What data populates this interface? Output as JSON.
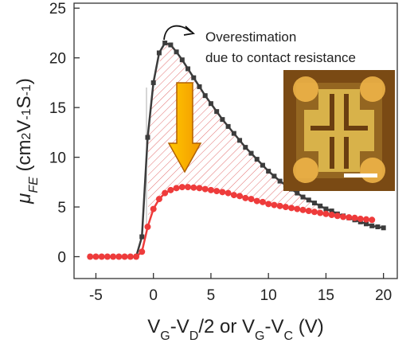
{
  "chart_data": {
    "type": "line",
    "annotation": [
      "Overestimation",
      "due to contact resistance"
    ],
    "xlabel": [
      {
        "text": "V"
      },
      {
        "text": "G",
        "shift": "sub"
      },
      {
        "text": "-V"
      },
      {
        "text": "D",
        "shift": "sub"
      },
      {
        "text": "/2 or V"
      },
      {
        "text": "G",
        "shift": "sub"
      },
      {
        "text": "-V"
      },
      {
        "text": "C",
        "shift": "sub"
      },
      {
        "text": " (V)"
      }
    ],
    "ylabel": [
      {
        "text": "μ",
        "italic": true
      },
      {
        "text": "FE",
        "shift": "sub",
        "italic": true
      },
      {
        "text": " (cm"
      },
      {
        "text": "2",
        "shift": "sup"
      },
      {
        "text": "V"
      },
      {
        "text": "-1",
        "shift": "sup"
      },
      {
        "text": "S"
      },
      {
        "text": "-1",
        "shift": "sup"
      },
      {
        "text": ")"
      }
    ],
    "x": [
      -5.5,
      -5,
      -4.5,
      -4,
      -3.5,
      -3,
      -2.5,
      -2,
      -1.5,
      -1,
      -0.5,
      0,
      0.5,
      1,
      1.5,
      2,
      2.5,
      3,
      3.5,
      4,
      4.5,
      5,
      5.5,
      6,
      6.5,
      7,
      7.5,
      8,
      8.5,
      9,
      9.5,
      10,
      10.5,
      11,
      11.5,
      12,
      12.5,
      13,
      13.5,
      14,
      14.5,
      15,
      15.5,
      16,
      16.5,
      17,
      17.5,
      18,
      18.5,
      19,
      19.5,
      20
    ],
    "series": [
      {
        "color": "#3c3c3c",
        "marker": "square",
        "values": [
          0,
          0,
          0,
          0,
          0,
          0,
          0,
          0,
          0,
          2,
          12,
          17.5,
          20.5,
          21.5,
          21.3,
          20.6,
          19.8,
          18.9,
          18.0,
          17.1,
          16.2,
          15.4,
          14.6,
          13.8,
          13.1,
          12.4,
          11.7,
          11.0,
          10.4,
          9.8,
          9.2,
          8.6,
          8.1,
          7.6,
          7.2,
          6.8,
          6.4,
          6.0,
          5.7,
          5.4,
          5.1,
          4.8,
          4.6,
          4.3,
          4.1,
          3.9,
          3.7,
          3.5,
          3.3,
          3.1,
          3.0,
          2.9
        ]
      },
      {
        "color": "#ee3b3b",
        "marker": "circle",
        "values": [
          0,
          0,
          0,
          0,
          0,
          0,
          0,
          0,
          0,
          0.5,
          3,
          4.8,
          5.8,
          6.4,
          6.7,
          6.9,
          7.0,
          7.0,
          6.95,
          6.9,
          6.8,
          6.7,
          6.6,
          6.5,
          6.4,
          6.2,
          6.1,
          5.9,
          5.8,
          5.6,
          5.5,
          5.3,
          5.2,
          5.1,
          5.0,
          4.9,
          4.8,
          4.7,
          4.6,
          4.5,
          4.4,
          4.3,
          4.2,
          4.1,
          4.0,
          3.95,
          3.9,
          3.8,
          3.75,
          3.7,
          null,
          null
        ]
      }
    ],
    "xlim": [
      -6.9,
      21.2
    ],
    "xticks": [
      -5,
      0,
      5,
      10,
      15,
      20
    ],
    "ylim": [
      -2.2,
      25.5
    ],
    "yticks": [
      0,
      5,
      10,
      15,
      20,
      25
    ]
  }
}
